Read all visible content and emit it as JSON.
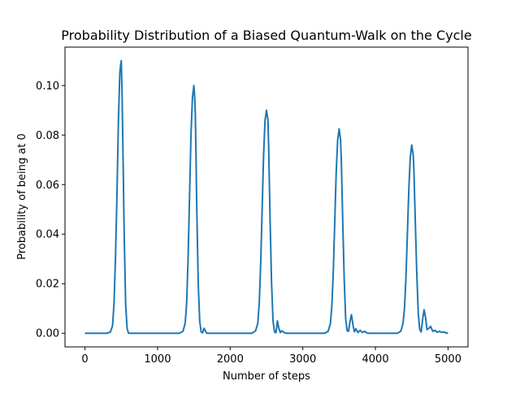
{
  "chart_data": {
    "type": "line",
    "title": "Probability Distribution of a Biased Quantum-Walk on the Cycle",
    "xlabel": "Number of steps",
    "ylabel": "Probability of being at 0",
    "xlim": [
      -275,
      5275
    ],
    "ylim": [
      -0.0055,
      0.1155
    ],
    "xticks": [
      0,
      1000,
      2000,
      3000,
      4000,
      5000
    ],
    "xtick_labels": [
      "0",
      "1000",
      "2000",
      "3000",
      "4000",
      "5000"
    ],
    "yticks": [
      0.0,
      0.02,
      0.04,
      0.06,
      0.08,
      0.1
    ],
    "ytick_labels": [
      "0.00",
      "0.02",
      "0.04",
      "0.06",
      "0.08",
      "0.10"
    ],
    "grid": false,
    "series": [
      {
        "color": "#1f77b4",
        "x": [
          0,
          300,
          350,
          380,
          400,
          420,
          440,
          460,
          480,
          490,
          500,
          510,
          520,
          540,
          560,
          580,
          600,
          650,
          1000,
          1300,
          1350,
          1380,
          1400,
          1420,
          1440,
          1460,
          1480,
          1500,
          1510,
          1520,
          1530,
          1540,
          1560,
          1580,
          1600,
          1620,
          1640,
          1660,
          1680,
          1700,
          2000,
          2300,
          2350,
          2380,
          2400,
          2420,
          2440,
          2460,
          2480,
          2500,
          2520,
          2530,
          2540,
          2550,
          2570,
          2590,
          2610,
          2630,
          2650,
          2670,
          2690,
          2710,
          2740,
          2780,
          2800,
          3000,
          3300,
          3350,
          3380,
          3400,
          3420,
          3440,
          3460,
          3480,
          3500,
          3520,
          3530,
          3540,
          3550,
          3570,
          3590,
          3610,
          3630,
          3650,
          3670,
          3690,
          3710,
          3730,
          3760,
          3790,
          3820,
          3850,
          3880,
          3900,
          4000,
          4300,
          4350,
          4380,
          4400,
          4420,
          4440,
          4460,
          4480,
          4500,
          4520,
          4530,
          4540,
          4550,
          4570,
          4590,
          4610,
          4630,
          4650,
          4670,
          4690,
          4710,
          4730,
          4760,
          4790,
          4820,
          4850,
          4880,
          4910,
          4940,
          4970,
          5000
        ],
        "y": [
          0.0,
          0.0,
          0.0005,
          0.003,
          0.012,
          0.03,
          0.055,
          0.085,
          0.105,
          0.108,
          0.11,
          0.098,
          0.08,
          0.04,
          0.012,
          0.002,
          0.0,
          0.0,
          0.0,
          0.0,
          0.0008,
          0.004,
          0.012,
          0.03,
          0.055,
          0.08,
          0.095,
          0.1,
          0.096,
          0.088,
          0.07,
          0.05,
          0.02,
          0.005,
          0.0005,
          0.0002,
          0.002,
          0.0008,
          0.0,
          0.0,
          0.0,
          0.0,
          0.001,
          0.004,
          0.012,
          0.028,
          0.05,
          0.072,
          0.086,
          0.09,
          0.086,
          0.075,
          0.06,
          0.045,
          0.02,
          0.005,
          0.0006,
          0.0002,
          0.005,
          0.002,
          0.0003,
          0.001,
          0.0003,
          0.0,
          0.0,
          0.0,
          0.0,
          0.0008,
          0.004,
          0.011,
          0.025,
          0.045,
          0.065,
          0.078,
          0.0825,
          0.078,
          0.07,
          0.058,
          0.045,
          0.022,
          0.006,
          0.001,
          0.0008,
          0.0048,
          0.0075,
          0.0035,
          0.0006,
          0.0018,
          0.0003,
          0.0012,
          0.0003,
          0.0008,
          0.0002,
          0.0,
          0.0,
          0.0,
          0.0008,
          0.004,
          0.01,
          0.022,
          0.04,
          0.058,
          0.071,
          0.076,
          0.072,
          0.066,
          0.055,
          0.044,
          0.024,
          0.008,
          0.0015,
          0.0005,
          0.0055,
          0.0095,
          0.0065,
          0.0015,
          0.0018,
          0.0028,
          0.0008,
          0.0012,
          0.0004,
          0.0008,
          0.0004,
          0.0005,
          0.0002,
          0.0
        ]
      }
    ]
  }
}
